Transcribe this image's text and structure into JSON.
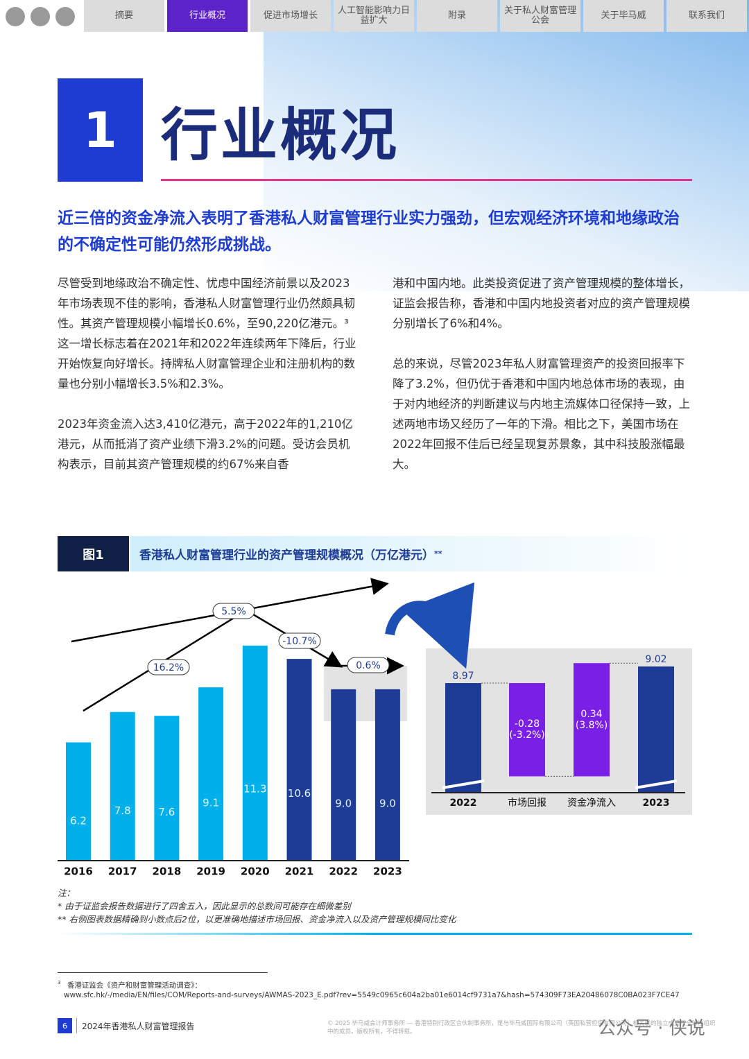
{
  "nav": [
    "摘要",
    "行业概况",
    "促进市场增长",
    "人工智能影响力日益扩大",
    "附录",
    "关于私人财富管理公会",
    "关于毕马威",
    "联系我们"
  ],
  "header": {
    "number": "1",
    "title": "行业概况"
  },
  "lead": "近三倍的资金净流入表明了香港私人财富管理行业实力强劲，但宏观经济环境和地缘政治的不确定性可能仍然形成挑战。",
  "body": {
    "left": [
      "尽管受到地缘政治不确定性、忧虑中国经济前景以及2023年市场表现不佳的影响，香港私人财富管理行业仍然颇具韧性。其资产管理规模小幅增长0.6%，至90,220亿港元。³这一增长标志着在2021年和2022年连续两年下降后，行业开始恢复向好增长。持牌私人财富管理企业和注册机构的数量也分别小幅增长3.5%和2.3%。",
      "2023年资金流入达3,410亿港元，高于2022年的1,210亿港元，从而抵消了资产业绩下滑3.2%的问题。受访会员机构表示，目前其资产管理规模的约67%来自香"
    ],
    "right": [
      "港和中国内地。此类投资促进了资产管理规模的整体增长，证监会报告称，香港和中国内地投资者对应的资产管理规模分别增长了6%和4%。",
      "总的来说，尽管2023年私人财富管理资产的投资回报率下降了3.2%，但仍优于香港和中国内地总体市场的表现，由于对内地经济的判断建议与内地主流媒体口径保持一致，上述两地市场又经历了一年的下滑。相比之下，美国市场在2022年回报不佳后已经呈现复苏景象，其中科技股涨幅最大。"
    ]
  },
  "figure": {
    "label": "图1",
    "title": "香港私人财富管理行业的资产管理规模概况（万亿港元）",
    "title_mark": "**"
  },
  "chart_data": [
    {
      "type": "bar",
      "categories": [
        "2016",
        "2017",
        "2018",
        "2019",
        "2020",
        "2021",
        "2022",
        "2023"
      ],
      "values": [
        6.2,
        7.8,
        7.6,
        9.1,
        11.3,
        10.6,
        9.0,
        9.0
      ],
      "value_labels": [
        "6.2",
        "7.8",
        "7.6",
        "9.1",
        "11.3",
        "10.6",
        "9.0",
        "9.0"
      ],
      "colors": [
        "#00b0ea",
        "#00b0ea",
        "#00b0ea",
        "#00b0ea",
        "#00b0ea",
        "#1e3c96",
        "#1e3c96",
        "#1e3c96"
      ],
      "annotations": [
        "16.2%",
        "5.5%",
        "-10.7%",
        "0.6%"
      ]
    },
    {
      "type": "waterfall",
      "categories": [
        "2022",
        "市场回报",
        "资金净流入",
        "2023"
      ],
      "values": [
        8.97,
        -0.28,
        0.34,
        9.02
      ],
      "kinds": [
        "total",
        "delta",
        "delta",
        "total"
      ],
      "colors": [
        "#1e3c96",
        "#7a1fe6",
        "#7a1fe6",
        "#1e3c96"
      ],
      "value_notes": [
        null,
        "(-3.2%)",
        "(3.8%)",
        null
      ]
    }
  ],
  "notes": {
    "heading": "注：",
    "items": [
      "* 由于证监会报告数据进行了四舍五入，因此显示的总数间可能存在细微差别",
      "** 右侧图表数据精确到小数点后2位，以更准确地描述市场回报、资金净流入以及资产管理规模同比变化"
    ]
  },
  "footnote": {
    "number": "3",
    "text": "香港证监会《资产和财富管理活动调查》：",
    "url": "www.sfc.hk/-/media/EN/files/COM/Reports-and-surveys/AWMAS-2023_E.pdf?rev=5549c0965c604a2ba01e6014cf9731a7&hash=574309F73EA20486078C0BA023F7CE47"
  },
  "footer": {
    "page": "6",
    "title": "2024年香港私人财富管理报告",
    "copyright": "© 2025 毕马威会计师事务所 — 香港特别行政区合伙制事务所，是与毕马威国际有限公司（英国私营担保有限公司）相关联的独立成员所全球性组织中的成员。版权所有，不得转载。",
    "watermark": "公众号 · 侠说"
  }
}
